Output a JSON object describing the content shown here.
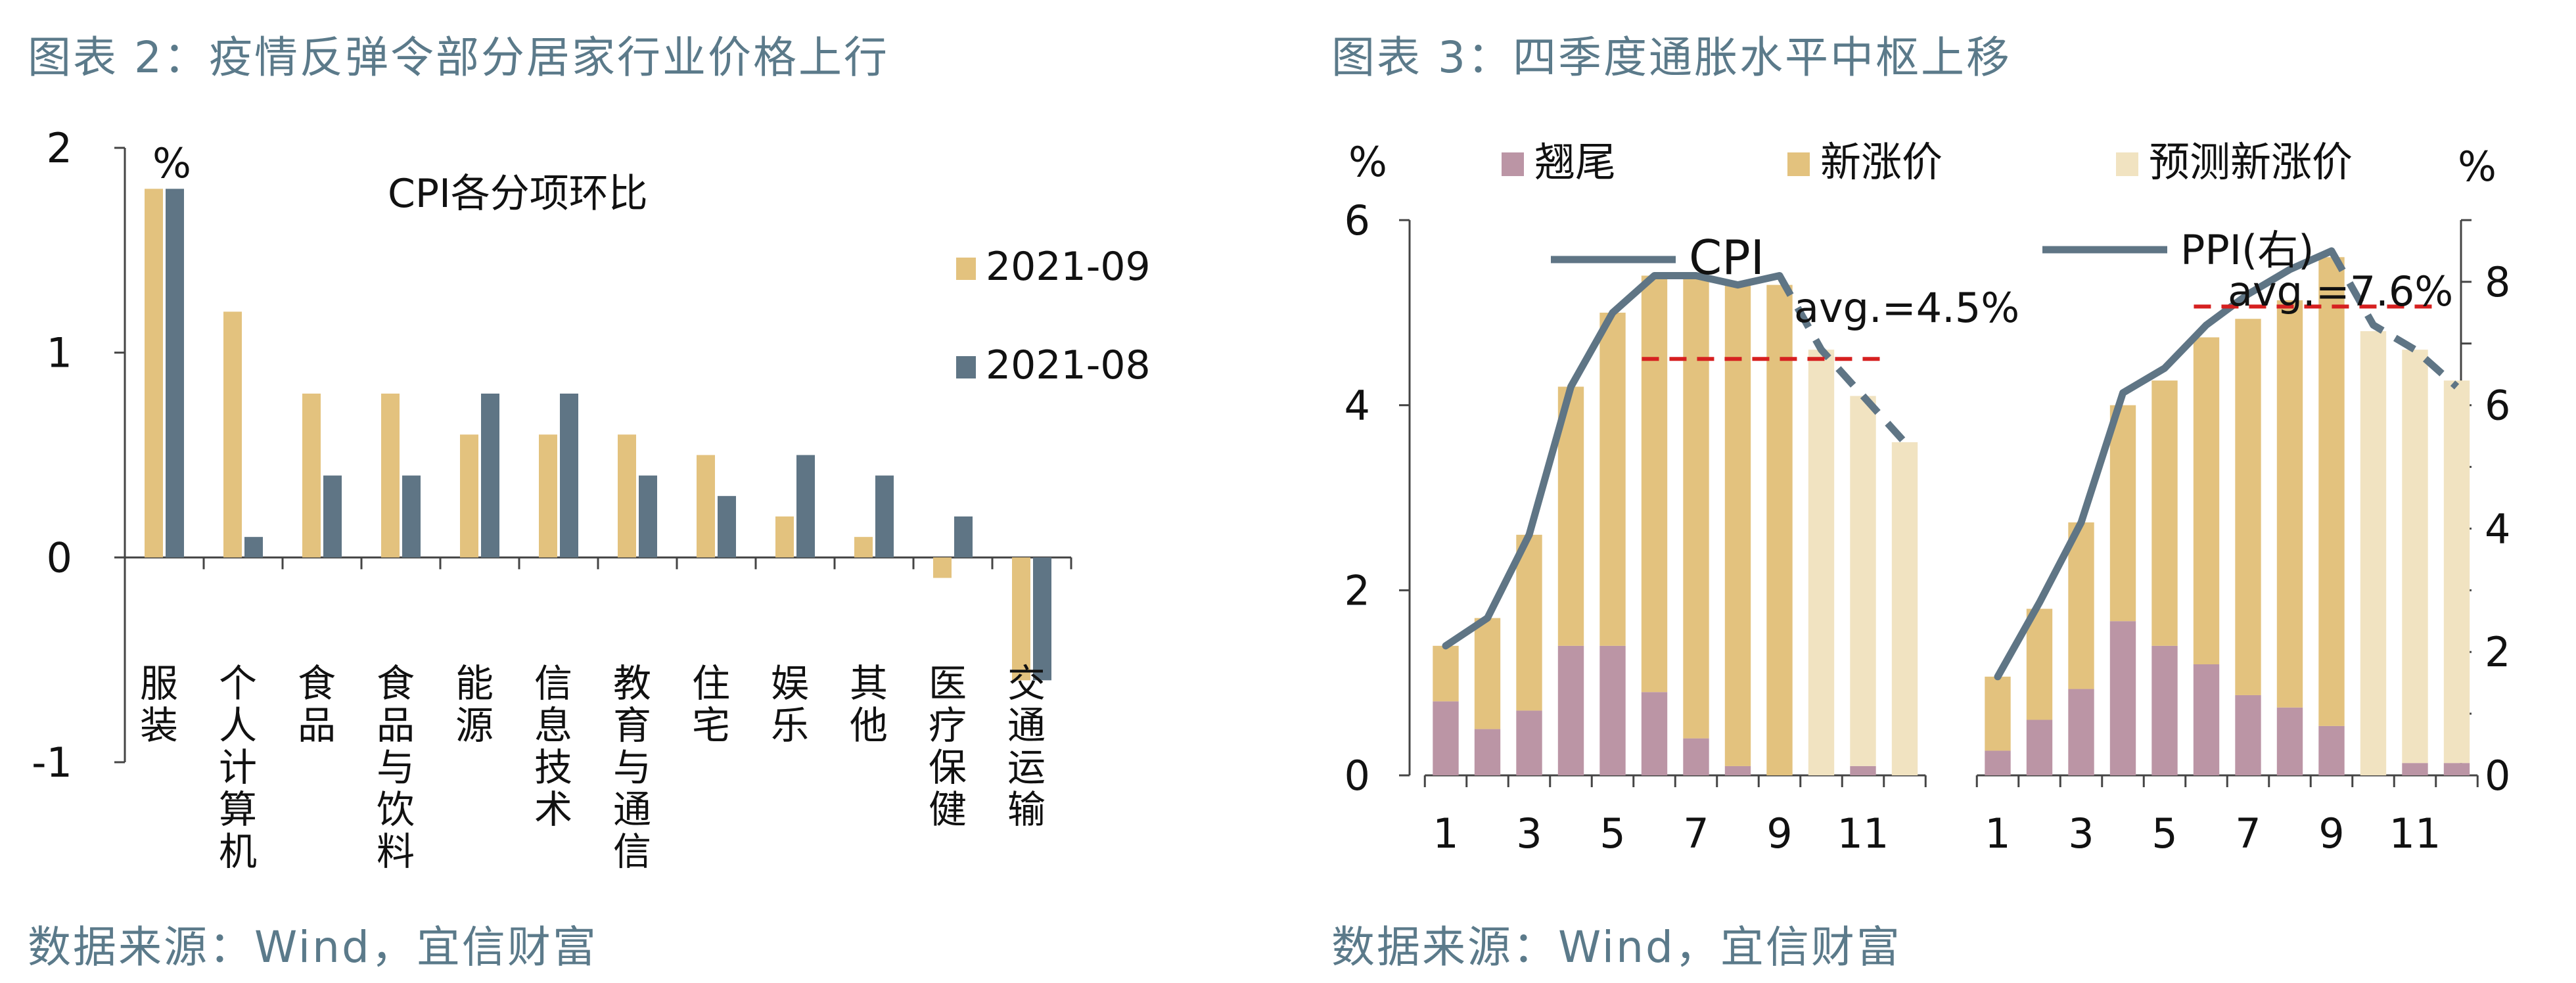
{
  "left_panel": {
    "title": "图表 2：疫情反弹令部分居家行业价格上行",
    "source": "数据来源：Wind，宜信财富"
  },
  "right_panel": {
    "title": "图表 3：四季度通胀水平中枢上移",
    "source": "数据来源：Wind，宜信财富"
  },
  "chart_data": [
    {
      "type": "bar",
      "title": "CPI各分项环比",
      "ylabel": "%",
      "ylim": [
        -1,
        2
      ],
      "yticks": [
        2,
        1,
        0,
        -1
      ],
      "categories": [
        "服装",
        "个人计算机",
        "食品",
        "食品与饮料",
        "能源",
        "信息技术",
        "教育与通信",
        "住宅",
        "娱乐",
        "其他",
        "医疗保健",
        "交通运输"
      ],
      "series": [
        {
          "name": "2021-09",
          "color": "#e3c27e",
          "values": [
            1.8,
            1.2,
            0.8,
            0.8,
            0.6,
            0.6,
            0.6,
            0.5,
            0.2,
            0.1,
            -0.1,
            -0.6
          ]
        },
        {
          "name": "2021-08",
          "color": "#5f7585",
          "values": [
            1.8,
            0.1,
            0.4,
            0.4,
            0.8,
            0.8,
            0.4,
            0.3,
            0.5,
            0.4,
            0.2,
            -0.6
          ]
        }
      ],
      "legend": "right",
      "grid": false
    },
    {
      "type": "bar",
      "stacked": true,
      "combo": "line",
      "ylabel_left": "%",
      "ylabel_right": "%",
      "ylim_left": [
        0,
        6
      ],
      "ylim_right": [
        0,
        9
      ],
      "yticks_left": [
        0,
        2,
        4,
        6
      ],
      "yticks_right": [
        0,
        2,
        4,
        6,
        8
      ],
      "x_ticks": [
        "1",
        "3",
        "5",
        "7",
        "9",
        "11"
      ],
      "legend": [
        {
          "name": "翘尾",
          "color": "#bb95a5"
        },
        {
          "name": "新涨价",
          "color": "#e3c27e"
        },
        {
          "name": "预测新涨价",
          "color": "#f1e3c1"
        }
      ],
      "cpi": {
        "line_label": "CPI",
        "avg_label": "avg.=4.5%",
        "avg_value": 4.5,
        "avg_from_month": 6,
        "avg_to_month": 12,
        "months": [
          1,
          2,
          3,
          4,
          5,
          6,
          7,
          8,
          9,
          10,
          11,
          12
        ],
        "carryover": [
          0.8,
          0.5,
          0.7,
          1.4,
          1.4,
          0.9,
          0.4,
          0.1,
          0.0,
          0.0,
          0.1,
          0.0
        ],
        "new_increase": [
          0.6,
          1.2,
          1.9,
          2.8,
          3.6,
          4.5,
          5.0,
          5.2,
          5.3,
          0.0,
          0.0,
          0.0
        ],
        "forecast_new": [
          0.0,
          0.0,
          0.0,
          0.0,
          0.0,
          0.0,
          0.0,
          0.0,
          0.0,
          4.6,
          4.0,
          3.6
        ],
        "line": [
          1.4,
          1.7,
          2.6,
          4.2,
          5.0,
          5.4,
          5.4,
          5.3,
          5.4,
          4.6,
          4.1,
          3.6
        ],
        "forecast_from_month": 10
      },
      "ppi": {
        "line_label": "PPI(右)",
        "avg_label": "avg.=7.6%",
        "avg_value": 7.6,
        "avg_from_month": 6,
        "avg_to_month": 12,
        "months": [
          1,
          2,
          3,
          4,
          5,
          6,
          7,
          8,
          9,
          10,
          11,
          12
        ],
        "carryover": [
          0.4,
          0.9,
          1.4,
          2.5,
          2.1,
          1.8,
          1.3,
          1.1,
          0.8,
          0.0,
          0.2,
          0.2
        ],
        "new_increase": [
          1.2,
          1.8,
          2.7,
          3.5,
          4.3,
          5.3,
          6.1,
          6.6,
          7.6,
          0.0,
          0.0,
          0.0
        ],
        "forecast_new": [
          0.0,
          0.0,
          0.0,
          0.0,
          0.0,
          0.0,
          0.0,
          0.0,
          0.0,
          7.2,
          6.7,
          6.2
        ],
        "line": [
          1.6,
          2.8,
          4.1,
          6.2,
          6.6,
          7.3,
          7.8,
          8.2,
          8.5,
          7.3,
          6.9,
          6.3
        ],
        "forecast_from_month": 10
      }
    }
  ]
}
